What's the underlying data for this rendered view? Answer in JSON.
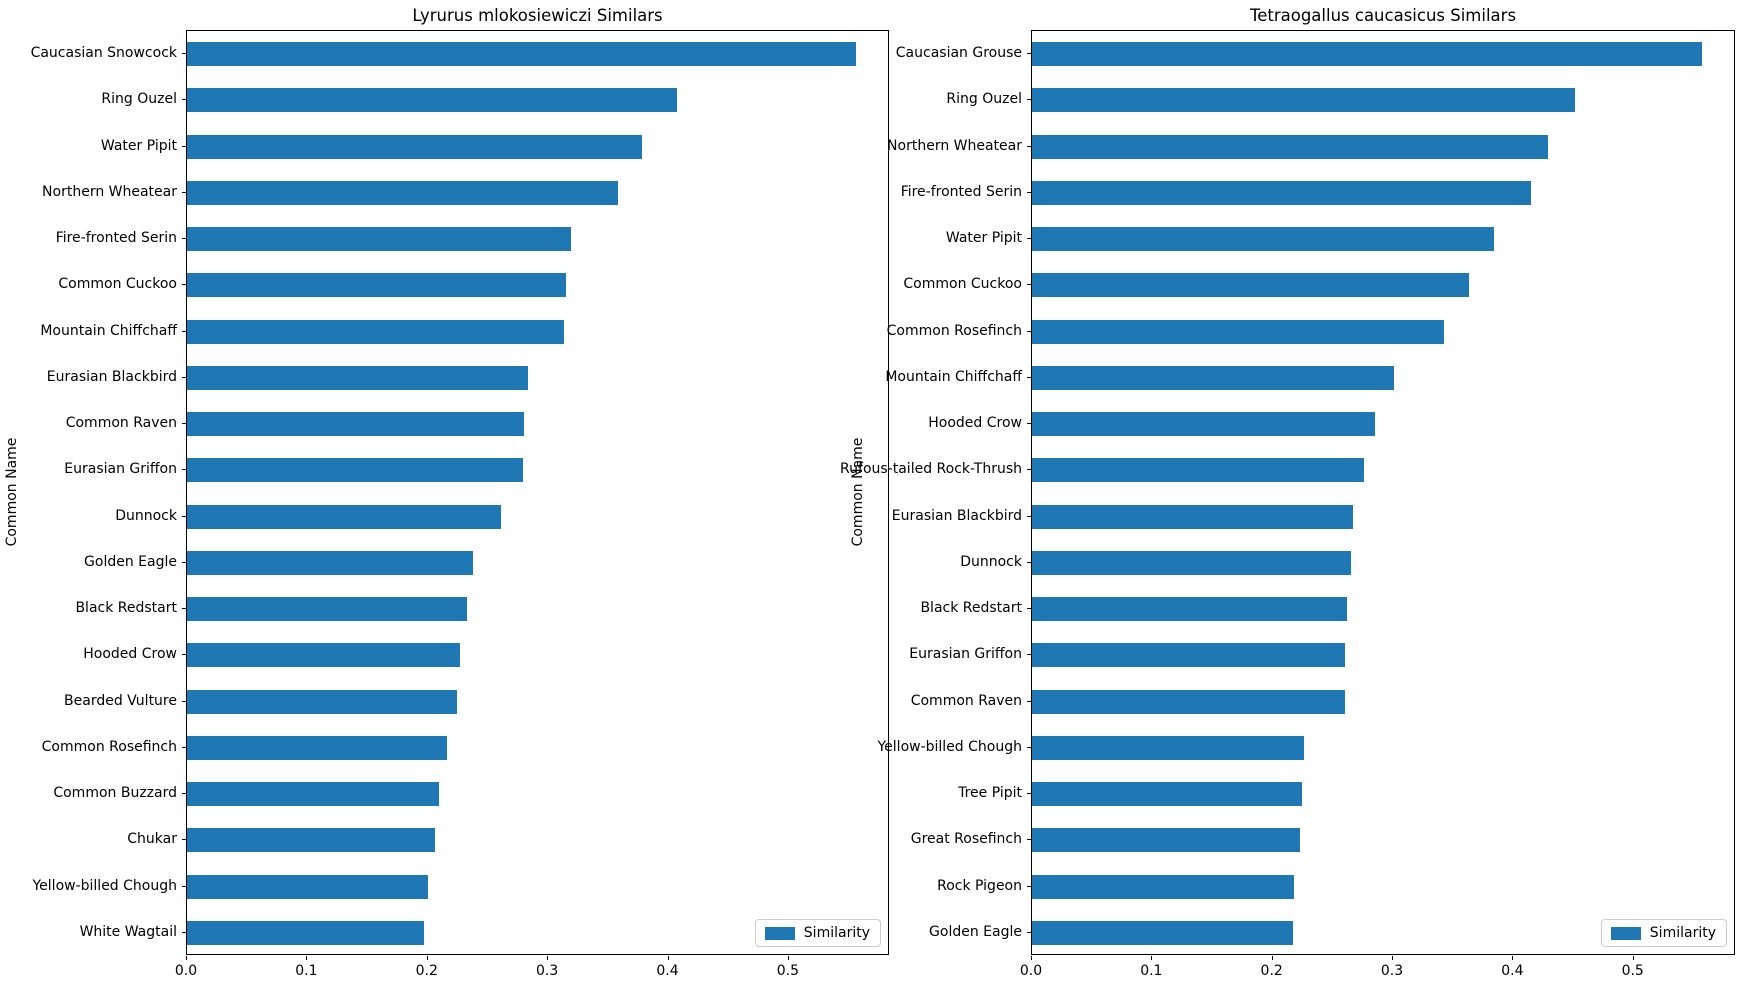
{
  "colors": {
    "bar": "#1f77b4",
    "spine": "#000000",
    "legend_edge": "#cccccc"
  },
  "chart_data": [
    {
      "type": "bar",
      "orientation": "horizontal",
      "title": "Lyrurus mlokosiewiczi Similars",
      "xlabel": "",
      "ylabel": "Common Name",
      "legend": [
        "Similarity"
      ],
      "legend_position": "lower right",
      "grid": false,
      "xlim": [
        0,
        0.584
      ],
      "xticks": [
        0.0,
        0.1,
        0.2,
        0.3,
        0.4,
        0.5
      ],
      "categories": [
        "Caucasian Snowcock",
        "Ring Ouzel",
        "Water Pipit",
        "Northern Wheatear",
        "Fire-fronted Serin",
        "Common Cuckoo",
        "Mountain Chiffchaff",
        "Eurasian Blackbird",
        "Common Raven",
        "Eurasian Griffon",
        "Dunnock",
        "Golden Eagle",
        "Black Redstart",
        "Hooded Crow",
        "Bearded Vulture",
        "Common Rosefinch",
        "Common Buzzard",
        "Chukar",
        "Yellow-billed Chough",
        "White Wagtail"
      ],
      "values": [
        0.556,
        0.407,
        0.378,
        0.358,
        0.319,
        0.315,
        0.313,
        0.283,
        0.28,
        0.279,
        0.261,
        0.238,
        0.233,
        0.227,
        0.224,
        0.216,
        0.209,
        0.206,
        0.2,
        0.197
      ]
    },
    {
      "type": "bar",
      "orientation": "horizontal",
      "title": "Tetraogallus caucasicus Similars",
      "xlabel": "",
      "ylabel": "Common Name",
      "legend": [
        "Similarity"
      ],
      "legend_position": "lower right",
      "grid": false,
      "xlim": [
        0,
        0.585
      ],
      "xticks": [
        0.0,
        0.1,
        0.2,
        0.3,
        0.4,
        0.5
      ],
      "categories": [
        "Caucasian Grouse",
        "Ring Ouzel",
        "Northern Wheatear",
        "Fire-fronted Serin",
        "Water Pipit",
        "Common Cuckoo",
        "Common Rosefinch",
        "Mountain Chiffchaff",
        "Hooded Crow",
        "Rufous-tailed Rock-Thrush",
        "Eurasian Blackbird",
        "Dunnock",
        "Black Redstart",
        "Eurasian Griffon",
        "Common Raven",
        "Yellow-billed Chough",
        "Tree Pipit",
        "Great Rosefinch",
        "Rock Pigeon",
        "Golden Eagle"
      ],
      "values": [
        0.557,
        0.451,
        0.429,
        0.415,
        0.384,
        0.363,
        0.342,
        0.301,
        0.285,
        0.276,
        0.267,
        0.265,
        0.262,
        0.26,
        0.26,
        0.226,
        0.224,
        0.223,
        0.218,
        0.217
      ]
    }
  ]
}
